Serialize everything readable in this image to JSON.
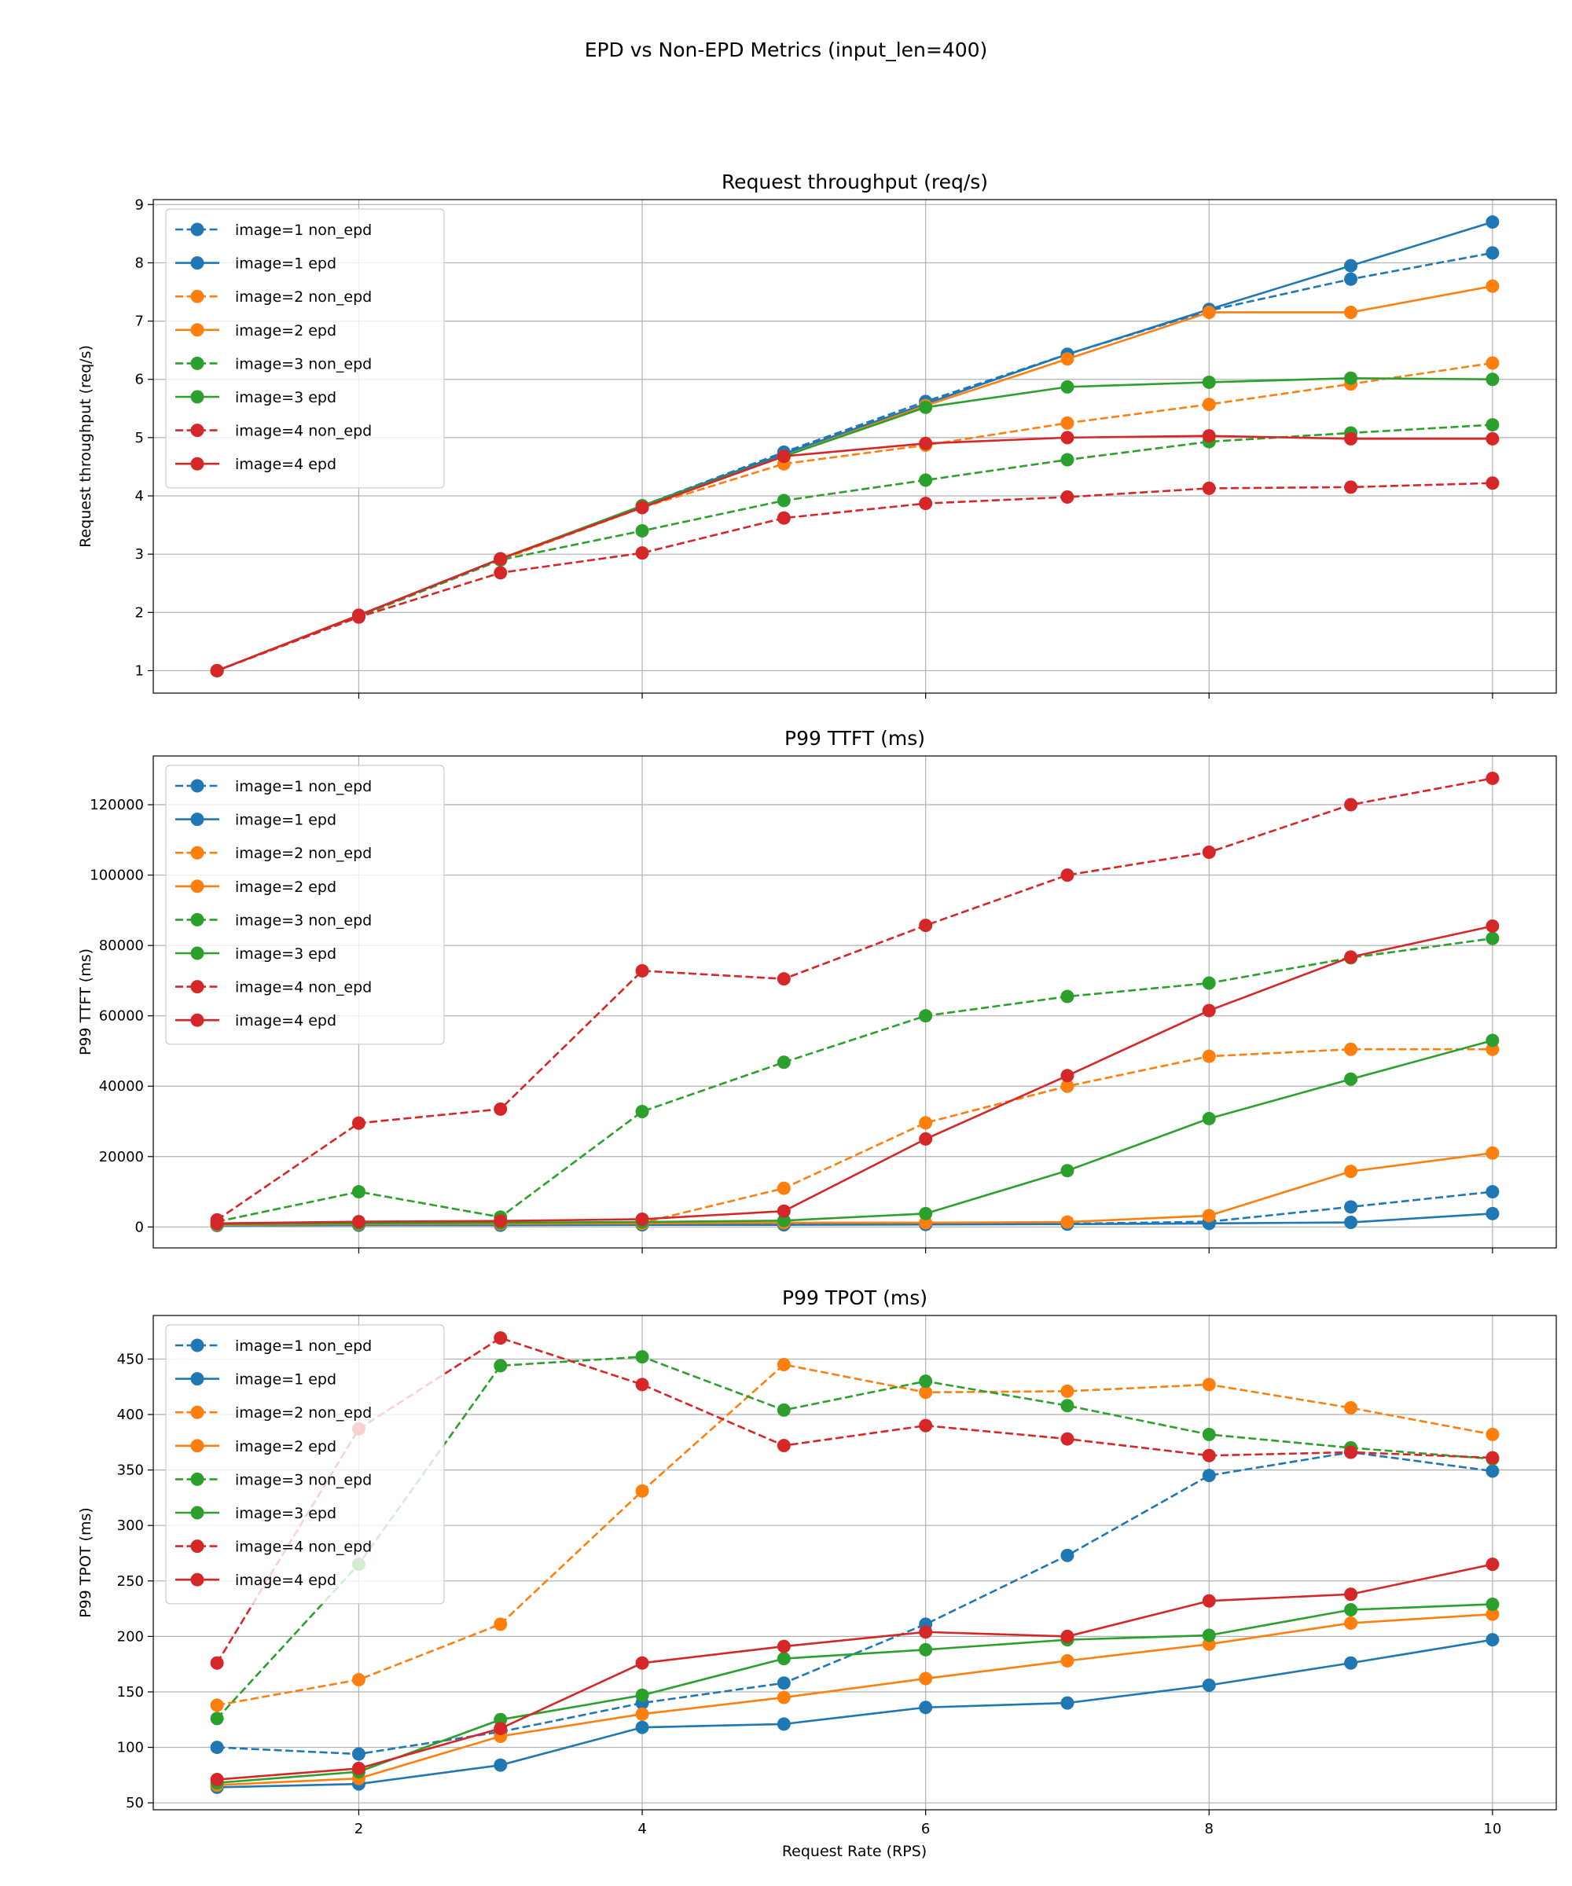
{
  "figure_title": "EPD vs Non-EPD Metrics (input_len=400)",
  "xlabel": "Request Rate (RPS)",
  "colors": {
    "image=1": "#1f77b4",
    "image=2": "#ff7f0e",
    "image=3": "#2ca02c",
    "image=4": "#d62728"
  },
  "chart_data": [
    {
      "type": "line",
      "title": "Request throughput (req/s)",
      "ylabel": "Request throughput (req/s)",
      "xlabel": "",
      "x": [
        1,
        2,
        3,
        4,
        5,
        6,
        7,
        8,
        9,
        10
      ],
      "xlim": [
        0.55,
        10.45
      ],
      "ylim": [
        0.615,
        9.085
      ],
      "xticks": [
        2,
        4,
        6,
        8,
        10
      ],
      "yticks": [
        1,
        2,
        3,
        4,
        5,
        6,
        7,
        8,
        9
      ],
      "grid": true,
      "legend": "top-left",
      "series": [
        {
          "name": "image=1 non_epd",
          "color": "#1f77b4",
          "dashed": true,
          "values": [
            1,
            1.93,
            2.9,
            3.83,
            4.75,
            5.62,
            6.43,
            7.18,
            7.72,
            8.17
          ]
        },
        {
          "name": "image=1 epd",
          "color": "#1f77b4",
          "dashed": false,
          "values": [
            1,
            1.95,
            2.92,
            3.83,
            4.72,
            5.58,
            6.43,
            7.2,
            7.95,
            8.7
          ]
        },
        {
          "name": "image=2 non_epd",
          "color": "#ff7f0e",
          "dashed": true,
          "values": [
            1,
            1.93,
            2.9,
            3.8,
            4.55,
            4.87,
            5.25,
            5.57,
            5.92,
            6.28
          ]
        },
        {
          "name": "image=2 epd",
          "color": "#ff7f0e",
          "dashed": false,
          "values": [
            1,
            1.95,
            2.92,
            3.82,
            4.68,
            5.55,
            6.35,
            7.15,
            7.15,
            7.6
          ]
        },
        {
          "name": "image=3 non_epd",
          "color": "#2ca02c",
          "dashed": true,
          "values": [
            1,
            1.93,
            2.9,
            3.4,
            3.92,
            4.27,
            4.62,
            4.93,
            5.08,
            5.22
          ]
        },
        {
          "name": "image=3 epd",
          "color": "#2ca02c",
          "dashed": false,
          "values": [
            1,
            1.95,
            2.92,
            3.83,
            4.68,
            5.52,
            5.87,
            5.95,
            6.02,
            6.0
          ]
        },
        {
          "name": "image=4 non_epd",
          "color": "#d62728",
          "dashed": true,
          "values": [
            1,
            1.92,
            2.68,
            3.02,
            3.62,
            3.87,
            3.98,
            4.13,
            4.15,
            4.22
          ]
        },
        {
          "name": "image=4 epd",
          "color": "#d62728",
          "dashed": false,
          "values": [
            1,
            1.95,
            2.92,
            3.8,
            4.68,
            4.9,
            5.0,
            5.03,
            4.98,
            4.98
          ]
        }
      ]
    },
    {
      "type": "line",
      "title": "P99 TTFT (ms)",
      "ylabel": "P99 TTFT (ms)",
      "xlabel": "",
      "x": [
        1,
        2,
        3,
        4,
        5,
        6,
        7,
        8,
        9,
        10
      ],
      "xlim": [
        0.55,
        10.45
      ],
      "ylim": [
        -5955,
        133855
      ],
      "xticks": [
        2,
        4,
        6,
        8,
        10
      ],
      "yticks": [
        0,
        20000,
        40000,
        60000,
        80000,
        100000,
        120000
      ],
      "grid": true,
      "legend": "top-left",
      "series": [
        {
          "name": "image=1 non_epd",
          "color": "#1f77b4",
          "dashed": true,
          "values": [
            500,
            600,
            600,
            700,
            700,
            800,
            900,
            1500,
            5700,
            10000
          ]
        },
        {
          "name": "image=1 epd",
          "color": "#1f77b4",
          "dashed": false,
          "values": [
            400,
            500,
            500,
            600,
            600,
            700,
            800,
            1000,
            1300,
            3800
          ]
        },
        {
          "name": "image=2 non_epd",
          "color": "#ff7f0e",
          "dashed": true,
          "values": [
            800,
            1000,
            1000,
            1200,
            11000,
            29600,
            40000,
            48500,
            50500,
            50500
          ]
        },
        {
          "name": "image=2 epd",
          "color": "#ff7f0e",
          "dashed": false,
          "values": [
            600,
            800,
            900,
            1000,
            1200,
            1200,
            1400,
            3200,
            15800,
            21000
          ]
        },
        {
          "name": "image=3 non_epd",
          "color": "#2ca02c",
          "dashed": true,
          "values": [
            1500,
            10000,
            2800,
            32800,
            46800,
            60000,
            65500,
            69300,
            76500,
            82000
          ]
        },
        {
          "name": "image=3 epd",
          "color": "#2ca02c",
          "dashed": false,
          "values": [
            800,
            1000,
            1200,
            1400,
            1800,
            3800,
            16000,
            30800,
            42000,
            53000
          ]
        },
        {
          "name": "image=4 non_epd",
          "color": "#d62728",
          "dashed": true,
          "values": [
            2000,
            29500,
            33500,
            72800,
            70500,
            85700,
            100000,
            106500,
            120000,
            127500
          ]
        },
        {
          "name": "image=4 epd",
          "color": "#d62728",
          "dashed": false,
          "values": [
            1000,
            1500,
            1700,
            2200,
            4500,
            25000,
            43000,
            61500,
            76700,
            85500
          ]
        }
      ]
    },
    {
      "type": "line",
      "title": "P99 TPOT (ms)",
      "ylabel": "P99 TPOT (ms)",
      "xlabel": "Request Rate (RPS)",
      "x": [
        1,
        2,
        3,
        4,
        5,
        6,
        7,
        8,
        9,
        10
      ],
      "xlim": [
        0.55,
        10.45
      ],
      "ylim": [
        43.75,
        489.25
      ],
      "xticks": [
        2,
        4,
        6,
        8,
        10
      ],
      "yticks": [
        50,
        100,
        150,
        200,
        250,
        300,
        350,
        400,
        450
      ],
      "grid": true,
      "legend": "top-left",
      "series": [
        {
          "name": "image=1 non_epd",
          "color": "#1f77b4",
          "dashed": true,
          "values": [
            100,
            94,
            114,
            140,
            158,
            211,
            273,
            345,
            366,
            349
          ]
        },
        {
          "name": "image=1 epd",
          "color": "#1f77b4",
          "dashed": false,
          "values": [
            64,
            67,
            84,
            118,
            121,
            136,
            140,
            156,
            176,
            197
          ]
        },
        {
          "name": "image=2 non_epd",
          "color": "#ff7f0e",
          "dashed": true,
          "values": [
            138,
            161,
            211,
            331,
            445,
            420,
            421,
            427,
            406,
            382
          ]
        },
        {
          "name": "image=2 epd",
          "color": "#ff7f0e",
          "dashed": false,
          "values": [
            66,
            72,
            110,
            130,
            145,
            162,
            178,
            193,
            212,
            220
          ]
        },
        {
          "name": "image=3 non_epd",
          "color": "#2ca02c",
          "dashed": true,
          "values": [
            126,
            265,
            444,
            452,
            404,
            430,
            408,
            382,
            370,
            360
          ]
        },
        {
          "name": "image=3 epd",
          "color": "#2ca02c",
          "dashed": false,
          "values": [
            68,
            78,
            125,
            147,
            180,
            188,
            197,
            201,
            224,
            229
          ]
        },
        {
          "name": "image=4 non_epd",
          "color": "#d62728",
          "dashed": true,
          "values": [
            176,
            387,
            469,
            427,
            372,
            390,
            378,
            363,
            366,
            361
          ]
        },
        {
          "name": "image=4 epd",
          "color": "#d62728",
          "dashed": false,
          "values": [
            71,
            81,
            117,
            176,
            191,
            204,
            200,
            232,
            238,
            265
          ]
        }
      ]
    }
  ]
}
